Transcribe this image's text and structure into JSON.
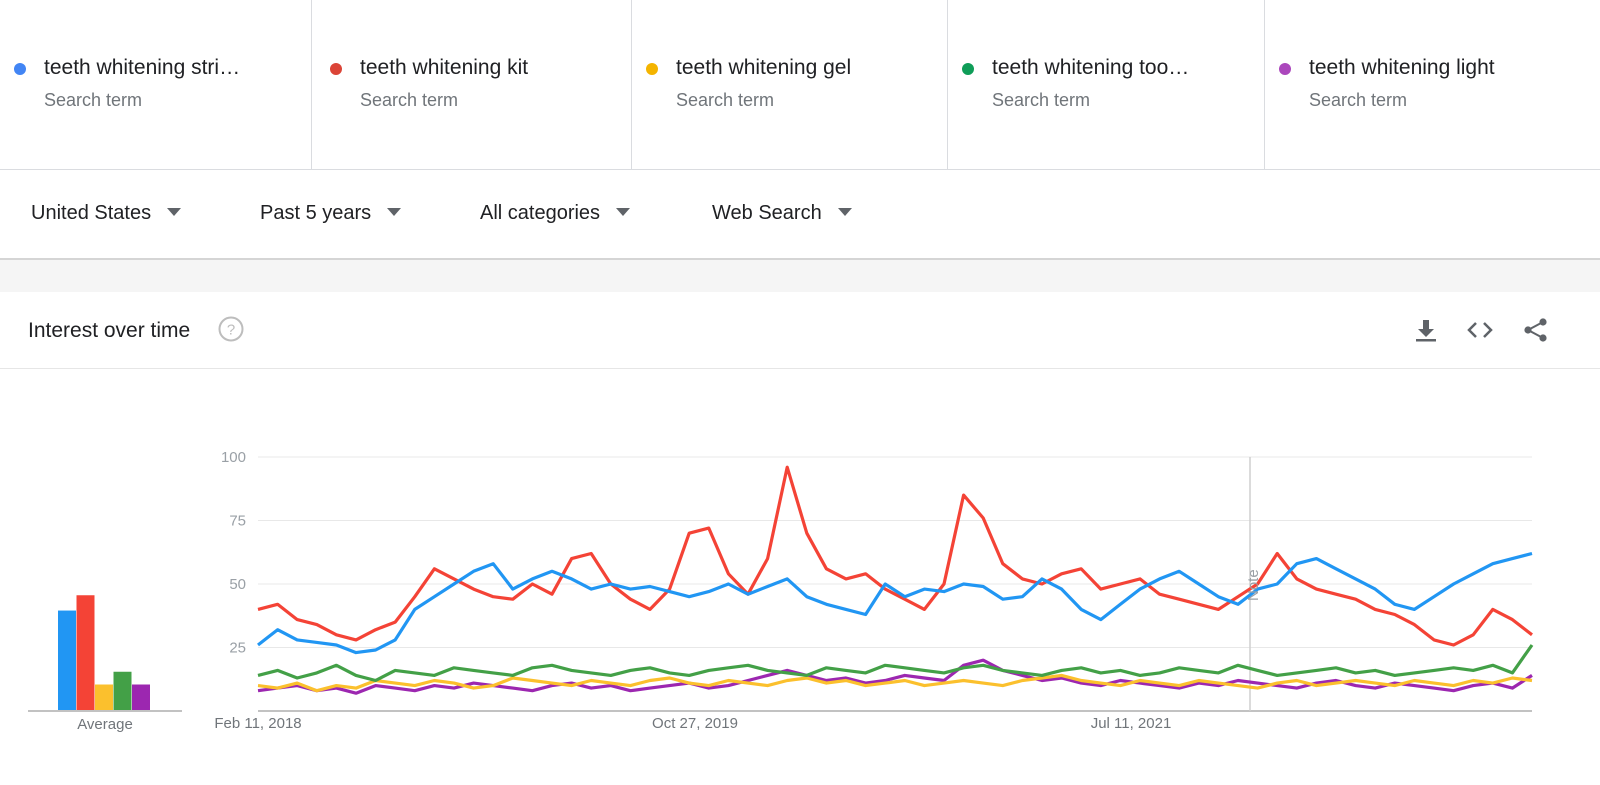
{
  "terms": [
    {
      "name": "teeth whitening stri…",
      "subtitle": "Search term",
      "color": "#4285f4"
    },
    {
      "name": "teeth whitening kit",
      "subtitle": "Search term",
      "color": "#db4437"
    },
    {
      "name": "teeth whitening gel",
      "subtitle": "Search term",
      "color": "#f4b400"
    },
    {
      "name": "teeth whitening too…",
      "subtitle": "Search term",
      "color": "#0f9d58"
    },
    {
      "name": "teeth whitening light",
      "subtitle": "Search term",
      "color": "#ab47bc"
    }
  ],
  "filters": {
    "region": "United States",
    "time": "Past 5 years",
    "category": "All categories",
    "search_type": "Web Search"
  },
  "card": {
    "title": "Interest over time",
    "icons": [
      "help-icon",
      "download-icon",
      "embed-icon",
      "share-icon"
    ]
  },
  "chart_data": {
    "type": "line",
    "title": "",
    "xlabel": "",
    "ylabel": "",
    "ylim": [
      0,
      100
    ],
    "y_ticks": [
      25,
      50,
      75,
      100
    ],
    "x_tick_labels": [
      "Feb 11, 2018",
      "Oct 27, 2019",
      "Jul 11, 2021"
    ],
    "annotation": "Note",
    "grid": true,
    "averages": {
      "label": "Average",
      "values": [
        39,
        45,
        10,
        15,
        10
      ],
      "colors": [
        "#2196f3",
        "#f44336",
        "#fbc02d",
        "#43a047",
        "#9c27b0"
      ]
    },
    "series": [
      {
        "name": "teeth whitening stri…",
        "color": "#2196f3",
        "values": [
          26,
          32,
          28,
          27,
          26,
          23,
          24,
          28,
          40,
          45,
          50,
          55,
          58,
          48,
          52,
          55,
          52,
          48,
          50,
          48,
          49,
          47,
          45,
          47,
          50,
          46,
          49,
          52,
          45,
          42,
          40,
          38,
          50,
          45,
          48,
          47,
          50,
          49,
          44,
          45,
          52,
          48,
          40,
          36,
          42,
          48,
          52,
          55,
          50,
          45,
          42,
          48,
          50,
          58,
          60,
          56,
          52,
          48,
          42,
          40,
          45,
          50,
          54,
          58,
          60,
          62
        ]
      },
      {
        "name": "teeth whitening kit",
        "color": "#f44336",
        "values": [
          40,
          42,
          36,
          34,
          30,
          28,
          32,
          35,
          45,
          56,
          52,
          48,
          45,
          44,
          50,
          46,
          60,
          62,
          50,
          44,
          40,
          48,
          70,
          72,
          54,
          46,
          60,
          96,
          70,
          56,
          52,
          54,
          48,
          44,
          40,
          50,
          85,
          76,
          58,
          52,
          50,
          54,
          56,
          48,
          50,
          52,
          46,
          44,
          42,
          40,
          45,
          50,
          62,
          52,
          48,
          46,
          44,
          40,
          38,
          34,
          28,
          26,
          30,
          40,
          36,
          30
        ]
      },
      {
        "name": "teeth whitening gel",
        "color": "#fbc02d",
        "values": [
          10,
          9,
          11,
          8,
          10,
          9,
          12,
          11,
          10,
          12,
          11,
          9,
          10,
          13,
          12,
          11,
          10,
          12,
          11,
          10,
          12,
          13,
          11,
          10,
          12,
          11,
          10,
          12,
          13,
          11,
          12,
          10,
          11,
          12,
          10,
          11,
          12,
          11,
          10,
          12,
          13,
          14,
          12,
          11,
          10,
          12,
          11,
          10,
          12,
          11,
          10,
          9,
          11,
          12,
          10,
          11,
          12,
          11,
          10,
          12,
          11,
          10,
          12,
          11,
          13,
          12
        ]
      },
      {
        "name": "teeth whitening too…",
        "color": "#43a047",
        "values": [
          14,
          16,
          13,
          15,
          18,
          14,
          12,
          16,
          15,
          14,
          17,
          16,
          15,
          14,
          17,
          18,
          16,
          15,
          14,
          16,
          17,
          15,
          14,
          16,
          17,
          18,
          16,
          15,
          14,
          17,
          16,
          15,
          18,
          17,
          16,
          15,
          17,
          18,
          16,
          15,
          14,
          16,
          17,
          15,
          16,
          14,
          15,
          17,
          16,
          15,
          18,
          16,
          14,
          15,
          16,
          17,
          15,
          16,
          14,
          15,
          16,
          17,
          16,
          18,
          15,
          26
        ]
      },
      {
        "name": "teeth whitening light",
        "color": "#9c27b0",
        "values": [
          8,
          9,
          10,
          8,
          9,
          7,
          10,
          9,
          8,
          10,
          9,
          11,
          10,
          9,
          8,
          10,
          11,
          9,
          10,
          8,
          9,
          10,
          11,
          9,
          10,
          12,
          14,
          16,
          14,
          12,
          13,
          11,
          12,
          14,
          13,
          12,
          18,
          20,
          16,
          14,
          12,
          13,
          11,
          10,
          12,
          11,
          10,
          9,
          11,
          10,
          12,
          11,
          10,
          9,
          11,
          12,
          10,
          9,
          11,
          10,
          9,
          8,
          10,
          11,
          9,
          14
        ]
      }
    ]
  }
}
